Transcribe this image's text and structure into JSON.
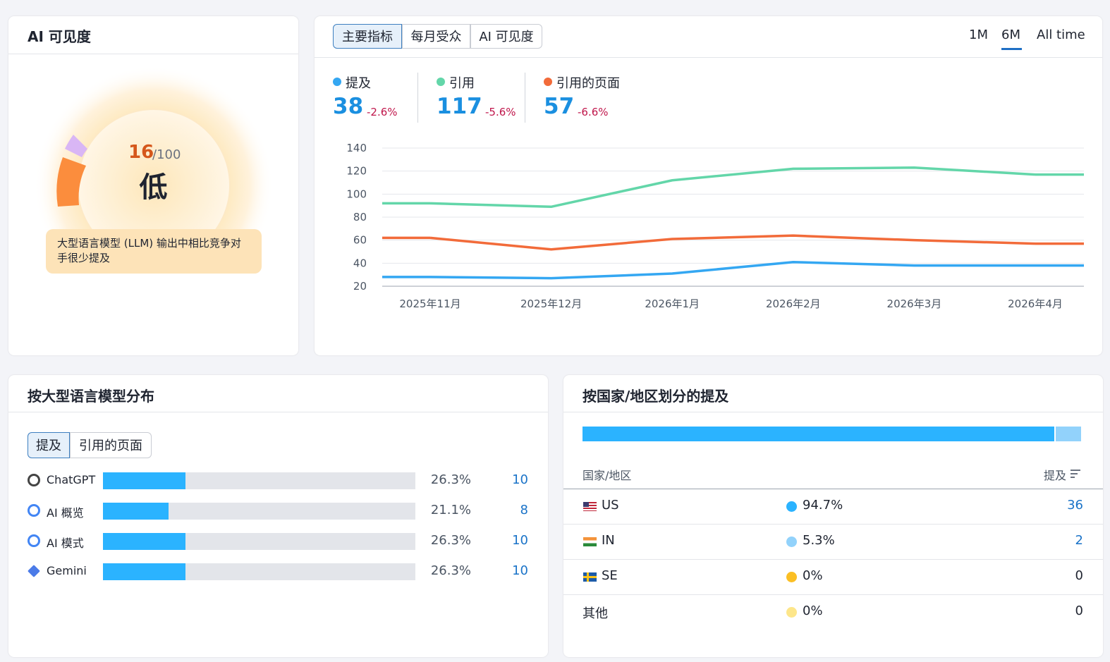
{
  "visibility": {
    "title": "AI 可见度",
    "score": 16,
    "max": "/100",
    "level": "低",
    "description": "大型语言模型 (LLM) 输出中相比竞争对手很少提及"
  },
  "metrics": {
    "tabs": [
      "主要指标",
      "每月受众",
      "AI 可见度"
    ],
    "active_tab": 0,
    "ranges": [
      "1M",
      "6M",
      "All time"
    ],
    "active_range": 1
  },
  "chart_data": {
    "type": "line",
    "categories": [
      "2025年11月",
      "2025年12月",
      "2026年1月",
      "2026年2月",
      "2026年3月",
      "2026年4月"
    ],
    "series": [
      {
        "name": "提及",
        "color": "#34a7f2",
        "total": 38,
        "change": "-2.6%",
        "values": [
          28,
          27,
          31,
          41,
          38,
          38
        ]
      },
      {
        "name": "引用",
        "color": "#63d6a9",
        "total": 117,
        "change": "-5.6%",
        "values": [
          92,
          89,
          112,
          122,
          123,
          117
        ]
      },
      {
        "name": "引用的页面",
        "color": "#f26b3a",
        "total": 57,
        "change": "-6.6%",
        "values": [
          62,
          52,
          61,
          64,
          60,
          57
        ]
      }
    ],
    "ylim": [
      20,
      140
    ],
    "yticks": [
      20,
      40,
      60,
      80,
      100,
      120,
      140
    ],
    "grid": true
  },
  "llm": {
    "title": "按大型语言模型分布",
    "tabs": [
      "提及",
      "引用的页面"
    ],
    "active_tab": 0,
    "xlim": [
      0,
      100
    ],
    "rows": [
      {
        "name": "ChatGPT",
        "share": 26.3,
        "share_label": "26.3%",
        "count": 10
      },
      {
        "name": "AI 概览",
        "share": 21.1,
        "share_label": "21.1%",
        "count": 8
      },
      {
        "name": "AI 模式",
        "share": 26.3,
        "share_label": "26.3%",
        "count": 10
      },
      {
        "name": "Gemini",
        "share": 26.3,
        "share_label": "26.3%",
        "count": 10
      }
    ]
  },
  "countries": {
    "title": "按国家/地区划分的提及",
    "columns": [
      "国家/地区",
      "提及"
    ],
    "rows": [
      {
        "name": "US",
        "share": 94.7,
        "share_label": "94.7%",
        "count": 36,
        "color": "#2bb3ff"
      },
      {
        "name": "IN",
        "share": 5.3,
        "share_label": "5.3%",
        "count": 2,
        "color": "#92d2fb"
      },
      {
        "name": "SE",
        "share": 0,
        "share_label": "0%",
        "count": 0,
        "color": "#fbbf24"
      },
      {
        "name": "其他",
        "share": 0,
        "share_label": "0%",
        "count": 0,
        "color": "#fde68a"
      }
    ]
  }
}
